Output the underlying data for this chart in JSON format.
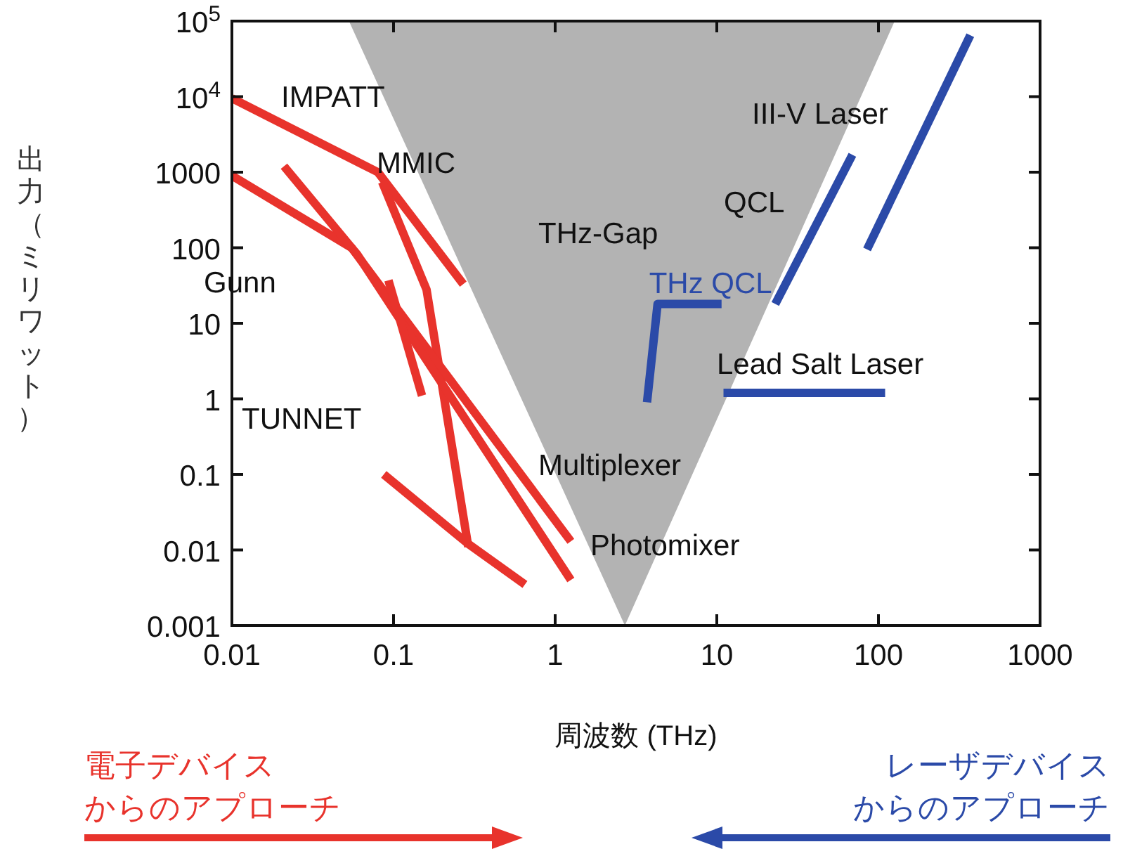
{
  "chart_data": {
    "type": "line",
    "xlabel": "周波数 (THz)",
    "ylabel": "出力（ミリワット）",
    "log": "xy",
    "grid": false,
    "legend": false,
    "marker": "none",
    "line_style": "solid",
    "xlim": [
      0.01,
      1000
    ],
    "ylim": [
      0.001,
      100000
    ],
    "xticks": [
      0.01,
      0.1,
      1,
      10,
      100,
      1000
    ],
    "yticks": [
      0.001,
      0.01,
      0.1,
      1,
      10,
      100,
      1000,
      {
        "value": 10000,
        "label": "10$^{4}$"
      },
      {
        "value": 100000,
        "label": "10$^{5}$"
      }
    ],
    "series": [
      {
        "type": "area",
        "color": "#b3b3b3",
        "x": [
          0.053,
          2.7,
          126
        ],
        "values": [
          100000,
          0.001,
          100000
        ]
      },
      {
        "type": "line",
        "color": "#e8332c",
        "x": [
          0.01,
          0.08,
          0.27
        ],
        "values": [
          9500,
          1000,
          33
        ]
      },
      {
        "type": "line",
        "color": "#e8332c",
        "x": [
          0.085,
          0.16,
          0.29
        ],
        "values": [
          740,
          28,
          0.011
        ]
      },
      {
        "type": "line",
        "color": "#e8332c",
        "x": [
          0.01,
          0.055,
          1.25
        ],
        "values": [
          900,
          100,
          0.013
        ]
      },
      {
        "type": "line",
        "color": "#e8332c",
        "x": [
          0.021,
          0.06,
          1.25
        ],
        "values": [
          1200,
          80,
          0.004
        ]
      },
      {
        "type": "line",
        "color": "#e8332c",
        "x": [
          0.093,
          0.15
        ],
        "values": [
          37,
          1.1
        ]
      },
      {
        "type": "line",
        "color": "#e8332c",
        "x": [
          0.087,
          0.29,
          0.65
        ],
        "values": [
          0.1,
          0.012,
          0.0035
        ]
      },
      {
        "type": "line",
        "color": "#2b4aa8",
        "x": [
          370,
          85
        ],
        "values": [
          65000,
          95
        ]
      },
      {
        "type": "line",
        "color": "#2b4aa8",
        "x": [
          69,
          23
        ],
        "values": [
          1700,
          18
        ]
      },
      {
        "type": "line",
        "color": "#2b4aa8",
        "name": "THz QCL",
        "x": [
          10.7,
          4.3,
          3.7
        ],
        "values": [
          18,
          18,
          0.9
        ]
      },
      {
        "type": "line",
        "color": "#2b4aa8",
        "x": [
          11,
          110
        ],
        "values": [
          1.2,
          1.2
        ]
      }
    ],
    "annotations": [
      "IMPATT",
      "MMIC",
      "Gunn",
      "TUNNET",
      "Multiplexer",
      "Photomixer",
      "THz-Gap",
      "QCL",
      "III-V Laser",
      "Lead Salt Laser",
      "電子デバイス",
      "からのアプローチ",
      "レーザデバイス",
      "からのアプローチ"
    ]
  }
}
